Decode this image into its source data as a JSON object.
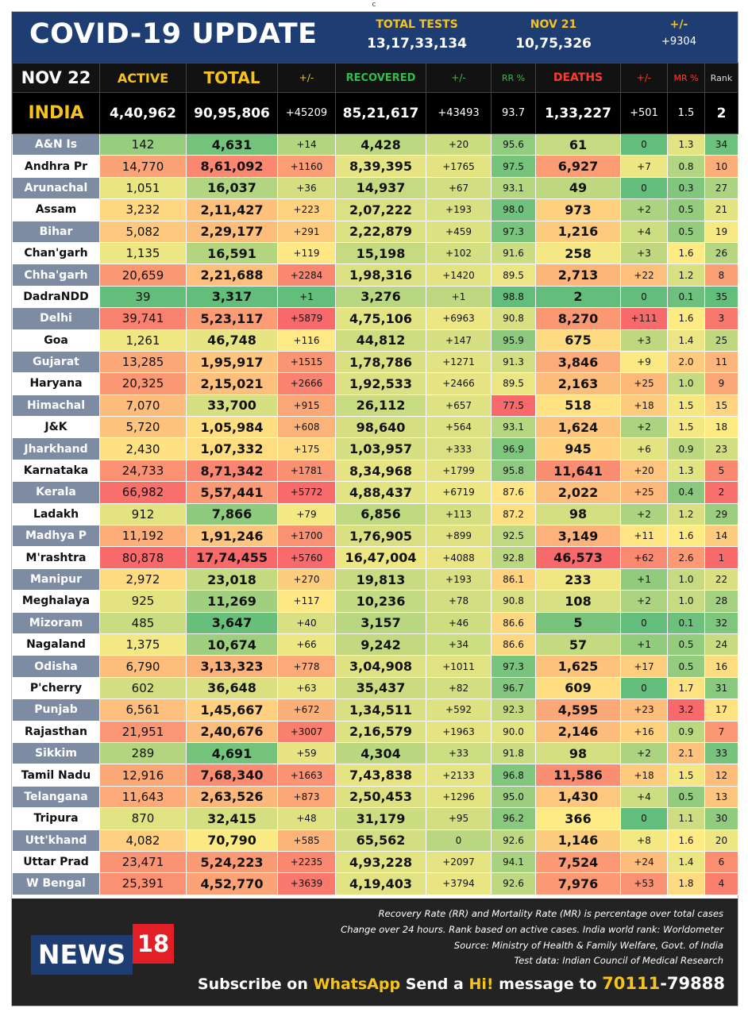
{
  "top_mark": "c",
  "header": {
    "title": "COVID-19 UPDATE",
    "tests_label": "TOTAL TESTS",
    "tests_value": "13,17,33,134",
    "date_label": "NOV 21",
    "date_value": "10,75,326",
    "delta_label": "+/-",
    "delta_value": "+9304"
  },
  "columns": {
    "date": "NOV 22",
    "active": "ACTIVE",
    "total": "TOTAL",
    "total_delta": "+/-",
    "recovered": "RECOVERED",
    "recovered_delta": "+/-",
    "rr": "RR %",
    "deaths": "DEATHS",
    "deaths_delta": "+/-",
    "mr": "MR %",
    "rank": "Rank"
  },
  "india": {
    "name": "INDIA",
    "active": "4,40,962",
    "total": "90,95,806",
    "total_delta": "+45209",
    "recovered": "85,21,617",
    "recovered_delta": "+43493",
    "rr": "93.7",
    "deaths": "1,33,227",
    "deaths_delta": "+501",
    "mr": "1.5",
    "rank": "2"
  },
  "rows": [
    {
      "name": "A&N Is",
      "active": "142",
      "total": "4,631",
      "dt": "+14",
      "rec": "4,428",
      "dr": "+20",
      "rr": "95.6",
      "deaths": "61",
      "dd": "0",
      "mr": "1.3",
      "rank": "34"
    },
    {
      "name": "Andhra Pr",
      "active": "14,770",
      "total": "8,61,092",
      "dt": "+1160",
      "rec": "8,39,395",
      "dr": "+1765",
      "rr": "97.5",
      "deaths": "6,927",
      "dd": "+7",
      "mr": "0.8",
      "rank": "10"
    },
    {
      "name": "Arunachal",
      "active": "1,051",
      "total": "16,037",
      "dt": "+36",
      "rec": "14,937",
      "dr": "+67",
      "rr": "93.1",
      "deaths": "49",
      "dd": "0",
      "mr": "0.3",
      "rank": "27"
    },
    {
      "name": "Assam",
      "active": "3,232",
      "total": "2,11,427",
      "dt": "+223",
      "rec": "2,07,222",
      "dr": "+193",
      "rr": "98.0",
      "deaths": "973",
      "dd": "+2",
      "mr": "0.5",
      "rank": "21"
    },
    {
      "name": "Bihar",
      "active": "5,082",
      "total": "2,29,177",
      "dt": "+291",
      "rec": "2,22,879",
      "dr": "+459",
      "rr": "97.3",
      "deaths": "1,216",
      "dd": "+4",
      "mr": "0.5",
      "rank": "19"
    },
    {
      "name": "Chan'garh",
      "active": "1,135",
      "total": "16,591",
      "dt": "+119",
      "rec": "15,198",
      "dr": "+102",
      "rr": "91.6",
      "deaths": "258",
      "dd": "+3",
      "mr": "1.6",
      "rank": "26"
    },
    {
      "name": "Chha'garh",
      "active": "20,659",
      "total": "2,21,688",
      "dt": "+2284",
      "rec": "1,98,316",
      "dr": "+1420",
      "rr": "89.5",
      "deaths": "2,713",
      "dd": "+22",
      "mr": "1.2",
      "rank": "8"
    },
    {
      "name": "DadraNDD",
      "active": "39",
      "total": "3,317",
      "dt": "+1",
      "rec": "3,276",
      "dr": "+1",
      "rr": "98.8",
      "deaths": "2",
      "dd": "0",
      "mr": "0.1",
      "rank": "35"
    },
    {
      "name": "Delhi",
      "active": "39,741",
      "total": "5,23,117",
      "dt": "+5879",
      "rec": "4,75,106",
      "dr": "+6963",
      "rr": "90.8",
      "deaths": "8,270",
      "dd": "+111",
      "mr": "1.6",
      "rank": "3"
    },
    {
      "name": "Goa",
      "active": "1,261",
      "total": "46,748",
      "dt": "+116",
      "rec": "44,812",
      "dr": "+147",
      "rr": "95.9",
      "deaths": "675",
      "dd": "+3",
      "mr": "1.4",
      "rank": "25"
    },
    {
      "name": "Gujarat",
      "active": "13,285",
      "total": "1,95,917",
      "dt": "+1515",
      "rec": "1,78,786",
      "dr": "+1271",
      "rr": "91.3",
      "deaths": "3,846",
      "dd": "+9",
      "mr": "2.0",
      "rank": "11"
    },
    {
      "name": "Haryana",
      "active": "20,325",
      "total": "2,15,021",
      "dt": "+2666",
      "rec": "1,92,533",
      "dr": "+2466",
      "rr": "89.5",
      "deaths": "2,163",
      "dd": "+25",
      "mr": "1.0",
      "rank": "9"
    },
    {
      "name": "Himachal",
      "active": "7,070",
      "total": "33,700",
      "dt": "+915",
      "rec": "26,112",
      "dr": "+657",
      "rr": "77.5",
      "deaths": "518",
      "dd": "+18",
      "mr": "1.5",
      "rank": "15"
    },
    {
      "name": "J&K",
      "active": "5,720",
      "total": "1,05,984",
      "dt": "+608",
      "rec": "98,640",
      "dr": "+564",
      "rr": "93.1",
      "deaths": "1,624",
      "dd": "+2",
      "mr": "1.5",
      "rank": "18"
    },
    {
      "name": "Jharkhand",
      "active": "2,430",
      "total": "1,07,332",
      "dt": "+175",
      "rec": "1,03,957",
      "dr": "+333",
      "rr": "96.9",
      "deaths": "945",
      "dd": "+6",
      "mr": "0.9",
      "rank": "23"
    },
    {
      "name": "Karnataka",
      "active": "24,733",
      "total": "8,71,342",
      "dt": "+1781",
      "rec": "8,34,968",
      "dr": "+1799",
      "rr": "95.8",
      "deaths": "11,641",
      "dd": "+20",
      "mr": "1.3",
      "rank": "5"
    },
    {
      "name": "Kerala",
      "active": "66,982",
      "total": "5,57,441",
      "dt": "+5772",
      "rec": "4,88,437",
      "dr": "+6719",
      "rr": "87.6",
      "deaths": "2,022",
      "dd": "+25",
      "mr": "0.4",
      "rank": "2"
    },
    {
      "name": "Ladakh",
      "active": "912",
      "total": "7,866",
      "dt": "+79",
      "rec": "6,856",
      "dr": "+113",
      "rr": "87.2",
      "deaths": "98",
      "dd": "+2",
      "mr": "1.2",
      "rank": "29"
    },
    {
      "name": "Madhya P",
      "active": "11,192",
      "total": "1,91,246",
      "dt": "+1700",
      "rec": "1,76,905",
      "dr": "+899",
      "rr": "92.5",
      "deaths": "3,149",
      "dd": "+11",
      "mr": "1.6",
      "rank": "14"
    },
    {
      "name": "M'rashtra",
      "active": "80,878",
      "total": "17,74,455",
      "dt": "+5760",
      "rec": "16,47,004",
      "dr": "+4088",
      "rr": "92.8",
      "deaths": "46,573",
      "dd": "+62",
      "mr": "2.6",
      "rank": "1"
    },
    {
      "name": "Manipur",
      "active": "2,972",
      "total": "23,018",
      "dt": "+270",
      "rec": "19,813",
      "dr": "+193",
      "rr": "86.1",
      "deaths": "233",
      "dd": "+1",
      "mr": "1.0",
      "rank": "22"
    },
    {
      "name": "Meghalaya",
      "active": "925",
      "total": "11,269",
      "dt": "+117",
      "rec": "10,236",
      "dr": "+78",
      "rr": "90.8",
      "deaths": "108",
      "dd": "+2",
      "mr": "1.0",
      "rank": "28"
    },
    {
      "name": "Mizoram",
      "active": "485",
      "total": "3,647",
      "dt": "+40",
      "rec": "3,157",
      "dr": "+46",
      "rr": "86.6",
      "deaths": "5",
      "dd": "0",
      "mr": "0.1",
      "rank": "32"
    },
    {
      "name": "Nagaland",
      "active": "1,375",
      "total": "10,674",
      "dt": "+66",
      "rec": "9,242",
      "dr": "+34",
      "rr": "86.6",
      "deaths": "57",
      "dd": "+1",
      "mr": "0.5",
      "rank": "24"
    },
    {
      "name": "Odisha",
      "active": "6,790",
      "total": "3,13,323",
      "dt": "+778",
      "rec": "3,04,908",
      "dr": "+1011",
      "rr": "97.3",
      "deaths": "1,625",
      "dd": "+17",
      "mr": "0.5",
      "rank": "16"
    },
    {
      "name": "P'cherry",
      "active": "602",
      "total": "36,648",
      "dt": "+63",
      "rec": "35,437",
      "dr": "+82",
      "rr": "96.7",
      "deaths": "609",
      "dd": "0",
      "mr": "1.7",
      "rank": "31"
    },
    {
      "name": "Punjab",
      "active": "6,561",
      "total": "1,45,667",
      "dt": "+672",
      "rec": "1,34,511",
      "dr": "+592",
      "rr": "92.3",
      "deaths": "4,595",
      "dd": "+23",
      "mr": "3.2",
      "rank": "17"
    },
    {
      "name": "Rajasthan",
      "active": "21,951",
      "total": "2,40,676",
      "dt": "+3007",
      "rec": "2,16,579",
      "dr": "+1963",
      "rr": "90.0",
      "deaths": "2,146",
      "dd": "+16",
      "mr": "0.9",
      "rank": "7"
    },
    {
      "name": "Sikkim",
      "active": "289",
      "total": "4,691",
      "dt": "+59",
      "rec": "4,304",
      "dr": "+33",
      "rr": "91.8",
      "deaths": "98",
      "dd": "+2",
      "mr": "2.1",
      "rank": "33"
    },
    {
      "name": "Tamil Nadu",
      "active": "12,916",
      "total": "7,68,340",
      "dt": "+1663",
      "rec": "7,43,838",
      "dr": "+2133",
      "rr": "96.8",
      "deaths": "11,586",
      "dd": "+18",
      "mr": "1.5",
      "rank": "12"
    },
    {
      "name": "Telangana",
      "active": "11,643",
      "total": "2,63,526",
      "dt": "+873",
      "rec": "2,50,453",
      "dr": "+1296",
      "rr": "95.0",
      "deaths": "1,430",
      "dd": "+4",
      "mr": "0.5",
      "rank": "13"
    },
    {
      "name": "Tripura",
      "active": "870",
      "total": "32,415",
      "dt": "+48",
      "rec": "31,179",
      "dr": "+95",
      "rr": "96.2",
      "deaths": "366",
      "dd": "0",
      "mr": "1.1",
      "rank": "30"
    },
    {
      "name": "Utt'khand",
      "active": "4,082",
      "total": "70,790",
      "dt": "+585",
      "rec": "65,562",
      "dr": "0",
      "rr": "92.6",
      "deaths": "1,146",
      "dd": "+8",
      "mr": "1.6",
      "rank": "20"
    },
    {
      "name": "Uttar Prad",
      "active": "23,471",
      "total": "5,24,223",
      "dt": "+2235",
      "rec": "4,93,228",
      "dr": "+2097",
      "rr": "94.1",
      "deaths": "7,524",
      "dd": "+24",
      "mr": "1.4",
      "rank": "6"
    },
    {
      "name": "W Bengal",
      "active": "25,391",
      "total": "4,52,770",
      "dt": "+3639",
      "rec": "4,19,403",
      "dr": "+3794",
      "rr": "92.6",
      "deaths": "7,976",
      "dd": "+53",
      "mr": "1.8",
      "rank": "4"
    }
  ],
  "footer": {
    "notes": [
      "Recovery Rate (RR) and Mortality Rate (MR) is percentage over total cases",
      "Change over 24 hours. Rank based on active cases. India world rank: Worldometer",
      "Source: Ministry of Health & Family Welfare, Govt. of India",
      "Test data: Indian Council of Medical Research"
    ],
    "logo_text": "NEWS",
    "logo_num": "18",
    "sub_1": "Subscribe on ",
    "sub_2": "WhatsApp",
    "sub_3": " Send a ",
    "sub_4": "Hi!",
    "sub_5": " message to ",
    "sub_6": "70111",
    "sub_7": "-79888"
  },
  "colors": {
    "header_bg": "#1e3d72",
    "accent": "#f6c21c",
    "recovered_label": "#2fbf4a",
    "deaths_label": "#ff3b2f",
    "scale_low": "#63be7b",
    "scale_mid": "#ffeb84",
    "scale_high": "#f8696b"
  }
}
